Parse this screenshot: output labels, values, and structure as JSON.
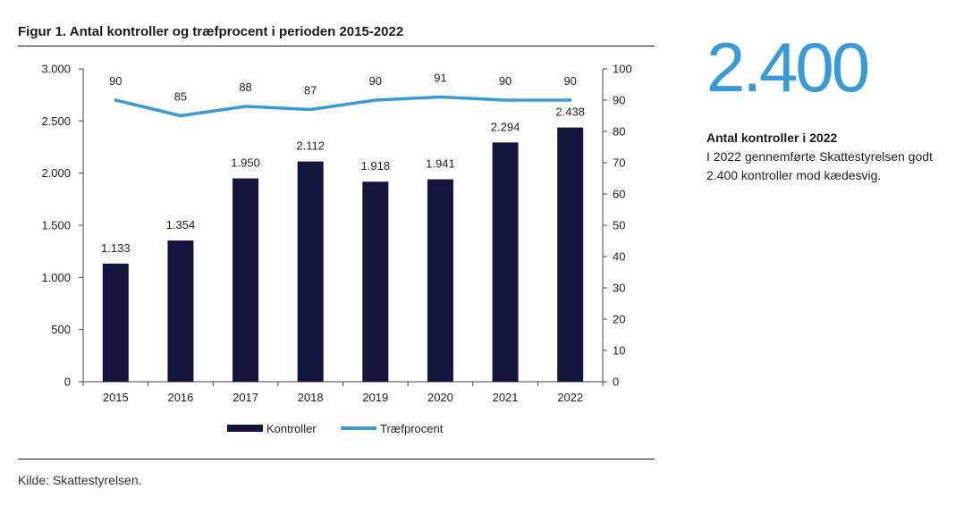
{
  "figure": {
    "title": "Figur 1. Antal kontroller og træfprocent i perioden 2015-2022",
    "source": "Kilde: Skattestyrelsen."
  },
  "highlight": {
    "number": "2.400",
    "heading": "Antal kontroller i 2022",
    "text": "I 2022 gennemførte Skattestyrelsen godt 2.400 kontroller mod kædesvig."
  },
  "chart_data": {
    "type": "bar",
    "title": "Figur 1. Antal kontroller og træfprocent i perioden 2015-2022",
    "categories": [
      "2015",
      "2016",
      "2017",
      "2018",
      "2019",
      "2020",
      "2021",
      "2022"
    ],
    "series": [
      {
        "name": "Kontroller",
        "type": "bar",
        "axis": "left",
        "color": "#14143c",
        "values": [
          1133,
          1354,
          1950,
          2112,
          1918,
          1941,
          2294,
          2438
        ],
        "labels": [
          "1.133",
          "1.354",
          "1.950",
          "2.112",
          "1.918",
          "1.941",
          "2.294",
          "2.438"
        ]
      },
      {
        "name": "Træfprocent",
        "type": "line",
        "axis": "right",
        "color": "#3a9ad6",
        "values": [
          90,
          85,
          88,
          87,
          90,
          91,
          90,
          90
        ],
        "labels": [
          "90",
          "85",
          "88",
          "87",
          "90",
          "91",
          "90",
          "90"
        ]
      }
    ],
    "y_left": {
      "range": [
        0,
        3000
      ],
      "ticks": [
        0,
        500,
        1000,
        1500,
        2000,
        2500,
        3000
      ],
      "tick_labels": [
        "0",
        "500",
        "1.000",
        "1.500",
        "2.000",
        "2.500",
        "3.000"
      ]
    },
    "y_right": {
      "range": [
        0,
        100
      ],
      "ticks": [
        0,
        10,
        20,
        30,
        40,
        50,
        60,
        70,
        80,
        90,
        100
      ],
      "tick_labels": [
        "0",
        "10",
        "20",
        "30",
        "40",
        "50",
        "60",
        "70",
        "80",
        "90",
        "100"
      ]
    },
    "grid": false,
    "legend": "bottom-center"
  }
}
